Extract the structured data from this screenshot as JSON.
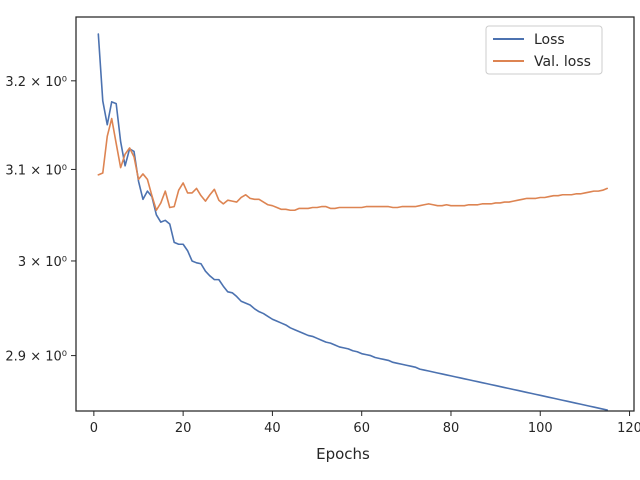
{
  "chart_data": {
    "type": "line",
    "title": "",
    "xlabel": "Epochs",
    "ylabel": "",
    "yscale": "log",
    "xlim": [
      -4,
      121
    ],
    "ylim": [
      2.843,
      3.274
    ],
    "grid": false,
    "legend_position": "top-right",
    "x_ticks": [
      0,
      20,
      40,
      60,
      80,
      100,
      120
    ],
    "x_tick_labels": [
      "0",
      "20",
      "40",
      "60",
      "80",
      "100",
      "120"
    ],
    "y_ticks": [
      2.9,
      3.0,
      3.1,
      3.2
    ],
    "y_tick_labels": [
      "2.9 × 10⁰",
      "3 × 10⁰",
      "3.1 × 10⁰",
      "3.2 × 10⁰"
    ],
    "series": [
      {
        "name": "Loss",
        "color": "#4c72b0",
        "x": [
          1,
          2,
          3,
          4,
          5,
          6,
          7,
          8,
          9,
          10,
          11,
          12,
          13,
          14,
          15,
          16,
          17,
          18,
          19,
          20,
          21,
          22,
          23,
          24,
          25,
          26,
          27,
          28,
          29,
          30,
          31,
          32,
          33,
          34,
          35,
          36,
          37,
          38,
          39,
          40,
          41,
          42,
          43,
          44,
          45,
          46,
          47,
          48,
          49,
          50,
          51,
          52,
          53,
          54,
          55,
          56,
          57,
          58,
          59,
          60,
          61,
          62,
          63,
          64,
          65,
          66,
          67,
          68,
          69,
          70,
          71,
          72,
          73,
          74,
          75,
          76,
          77,
          78,
          79,
          80,
          81,
          82,
          83,
          84,
          85,
          86,
          87,
          88,
          89,
          90,
          91,
          92,
          93,
          94,
          95,
          96,
          97,
          98,
          99,
          100,
          101,
          102,
          103,
          104,
          105,
          106,
          107,
          108,
          109,
          110,
          111,
          112,
          113,
          114,
          115
        ],
        "y": [
          3.254,
          3.177,
          3.15,
          3.176,
          3.174,
          3.131,
          3.104,
          3.123,
          3.12,
          3.087,
          3.067,
          3.076,
          3.07,
          3.05,
          3.042,
          3.044,
          3.04,
          3.02,
          3.018,
          3.018,
          3.011,
          3.0,
          2.998,
          2.997,
          2.989,
          2.984,
          2.98,
          2.98,
          2.973,
          2.967,
          2.966,
          2.962,
          2.957,
          2.955,
          2.953,
          2.949,
          2.946,
          2.944,
          2.941,
          2.938,
          2.936,
          2.934,
          2.932,
          2.929,
          2.927,
          2.925,
          2.923,
          2.921,
          2.92,
          2.918,
          2.916,
          2.914,
          2.913,
          2.911,
          2.909,
          2.908,
          2.907,
          2.905,
          2.904,
          2.902,
          2.901,
          2.9,
          2.898,
          2.897,
          2.896,
          2.895,
          2.893,
          2.892,
          2.891,
          2.89,
          2.889,
          2.888,
          2.886,
          2.885,
          2.884,
          2.883,
          2.882,
          2.881,
          2.88,
          2.879,
          2.878,
          2.877,
          2.876,
          2.875,
          2.874,
          2.873,
          2.872,
          2.871,
          2.87,
          2.869,
          2.868,
          2.867,
          2.866,
          2.865,
          2.864,
          2.863,
          2.862,
          2.861,
          2.86,
          2.859,
          2.858,
          2.857,
          2.856,
          2.855,
          2.854,
          2.853,
          2.852,
          2.851,
          2.85,
          2.849,
          2.848,
          2.847,
          2.846,
          2.845,
          2.844
        ]
      },
      {
        "name": "Val. loss",
        "color": "#dd8452",
        "x": [
          1,
          2,
          3,
          4,
          5,
          6,
          7,
          8,
          9,
          10,
          11,
          12,
          13,
          14,
          15,
          16,
          17,
          18,
          19,
          20,
          21,
          22,
          23,
          24,
          25,
          26,
          27,
          28,
          29,
          30,
          31,
          32,
          33,
          34,
          35,
          36,
          37,
          38,
          39,
          40,
          41,
          42,
          43,
          44,
          45,
          46,
          47,
          48,
          49,
          50,
          51,
          52,
          53,
          54,
          55,
          56,
          57,
          58,
          59,
          60,
          61,
          62,
          63,
          64,
          65,
          66,
          67,
          68,
          69,
          70,
          71,
          72,
          73,
          74,
          75,
          76,
          77,
          78,
          79,
          80,
          81,
          82,
          83,
          84,
          85,
          86,
          87,
          88,
          89,
          90,
          91,
          92,
          93,
          94,
          95,
          96,
          97,
          98,
          99,
          100,
          101,
          102,
          103,
          104,
          105,
          106,
          107,
          108,
          109,
          110,
          111,
          112,
          113,
          114,
          115
        ],
        "y": [
          3.094,
          3.096,
          3.137,
          3.157,
          3.129,
          3.102,
          3.117,
          3.124,
          3.114,
          3.089,
          3.095,
          3.089,
          3.071,
          3.055,
          3.063,
          3.076,
          3.058,
          3.059,
          3.077,
          3.085,
          3.074,
          3.074,
          3.079,
          3.071,
          3.065,
          3.072,
          3.078,
          3.066,
          3.062,
          3.066,
          3.065,
          3.064,
          3.069,
          3.072,
          3.068,
          3.067,
          3.067,
          3.064,
          3.061,
          3.06,
          3.058,
          3.056,
          3.056,
          3.055,
          3.055,
          3.057,
          3.057,
          3.057,
          3.058,
          3.058,
          3.059,
          3.059,
          3.057,
          3.057,
          3.058,
          3.058,
          3.058,
          3.058,
          3.058,
          3.058,
          3.059,
          3.059,
          3.059,
          3.059,
          3.059,
          3.059,
          3.058,
          3.058,
          3.059,
          3.059,
          3.059,
          3.059,
          3.06,
          3.061,
          3.062,
          3.061,
          3.06,
          3.06,
          3.061,
          3.06,
          3.06,
          3.06,
          3.06,
          3.061,
          3.061,
          3.061,
          3.062,
          3.062,
          3.062,
          3.063,
          3.063,
          3.064,
          3.064,
          3.065,
          3.066,
          3.067,
          3.068,
          3.068,
          3.068,
          3.069,
          3.069,
          3.07,
          3.071,
          3.071,
          3.072,
          3.072,
          3.072,
          3.073,
          3.073,
          3.074,
          3.075,
          3.076,
          3.076,
          3.077,
          3.079
        ]
      }
    ]
  }
}
